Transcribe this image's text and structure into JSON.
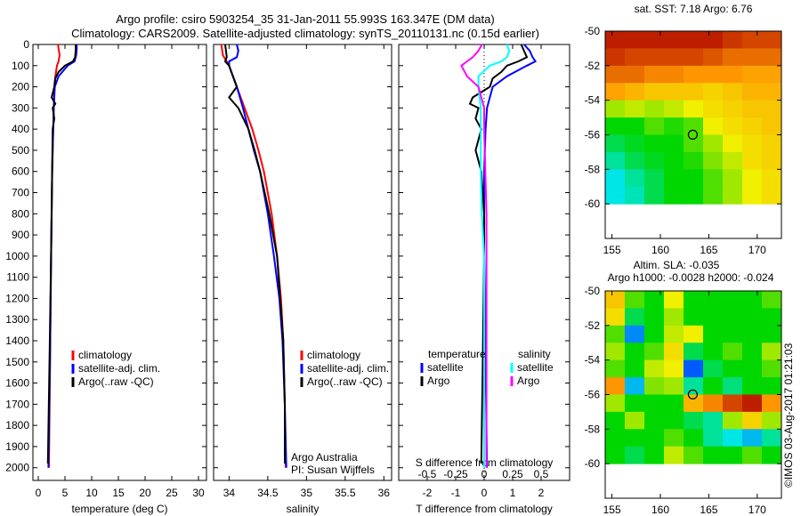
{
  "title": {
    "line1": "Argo profile: csiro 5903254_35 31-Jan-2011 55.993S 163.347E (DM data)",
    "line2": "Climatology: CARS2009. Satellite-adjusted climatology: synTS_20110131.nc (0.15d earlier)"
  },
  "footer": {
    "credit": "Argo Australia",
    "pi": "PI: Susan Wijffels",
    "stamp": "©IMOS 03-Aug-2017 01:21:03"
  },
  "colors": {
    "climatology": "#ff0000",
    "satellite": "#0000ff",
    "argo": "#000000",
    "sal_satellite": "#00ffff",
    "sal_argo": "#ff00ff"
  },
  "chart_data": [
    {
      "type": "line",
      "id": "temperature",
      "xlabel": "temperature (deg C)",
      "ylabel": "",
      "xlim": [
        -1,
        31.5
      ],
      "ylim": [
        2060,
        0
      ],
      "xticks": [
        0,
        5,
        10,
        15,
        20,
        25,
        30
      ],
      "yticks": [
        0,
        100,
        200,
        300,
        400,
        500,
        600,
        700,
        800,
        900,
        1000,
        1100,
        1200,
        1300,
        1400,
        1500,
        1600,
        1700,
        1800,
        1900,
        2000
      ],
      "legend": {
        "placement": "lower-center",
        "entries": [
          "climatology",
          "satellite-adj. clim.",
          "Argo(..raw -QC)"
        ]
      },
      "series": [
        {
          "name": "climatology",
          "color": "#ff0000",
          "depth": [
            0,
            20,
            50,
            80,
            100,
            150,
            200,
            300,
            400,
            600,
            800,
            1000,
            1500,
            2000
          ],
          "values": [
            3.7,
            3.8,
            4.0,
            3.8,
            3.5,
            3.2,
            3.0,
            2.9,
            2.8,
            2.6,
            2.5,
            2.4,
            2.2,
            2.0
          ]
        },
        {
          "name": "satellite-adj. clim.",
          "color": "#0000ff",
          "depth": [
            0,
            20,
            50,
            80,
            100,
            150,
            200,
            300,
            400,
            600,
            800,
            1000,
            1500,
            2000
          ],
          "values": [
            7.2,
            7.2,
            7.1,
            6.8,
            5.5,
            3.8,
            3.1,
            2.9,
            2.8,
            2.6,
            2.5,
            2.4,
            2.2,
            1.9
          ]
        },
        {
          "name": "Argo(..raw -QC)",
          "color": "#000000",
          "depth": [
            0,
            30,
            60,
            80,
            100,
            130,
            160,
            200,
            250,
            280,
            300,
            350,
            400,
            600,
            1000,
            1500,
            1980
          ],
          "values": [
            7.0,
            7.0,
            6.9,
            6.5,
            5.0,
            3.8,
            3.2,
            3.0,
            2.5,
            3.2,
            2.7,
            3.0,
            2.7,
            2.6,
            2.4,
            2.1,
            1.8
          ]
        }
      ]
    },
    {
      "type": "line",
      "id": "salinity",
      "xlabel": "salinity",
      "ylabel": "",
      "xlim": [
        33.8,
        36.1
      ],
      "ylim": [
        2060,
        0
      ],
      "xticks": [
        34,
        34.5,
        35,
        35.5,
        36
      ],
      "legend": {
        "placement": "lower-center",
        "entries": [
          "climatology",
          "satellite-adj. clim.",
          "Argo(..raw -QC)"
        ]
      },
      "series": [
        {
          "name": "climatology",
          "color": "#ff0000",
          "depth": [
            0,
            50,
            100,
            200,
            300,
            400,
            500,
            600,
            800,
            1000,
            1200,
            1400,
            1700,
            2000
          ],
          "values": [
            33.9,
            33.92,
            34.0,
            34.1,
            34.2,
            34.3,
            34.38,
            34.45,
            34.55,
            34.62,
            34.67,
            34.7,
            34.72,
            34.73
          ]
        },
        {
          "name": "satellite-adj. clim.",
          "color": "#0000ff",
          "depth": [
            0,
            30,
            60,
            80,
            100,
            150,
            200,
            300,
            400,
            500,
            600,
            800,
            1000,
            1200,
            1400,
            1700,
            2000
          ],
          "values": [
            34.1,
            34.12,
            34.1,
            34.0,
            34.0,
            34.05,
            34.1,
            34.18,
            34.25,
            34.32,
            34.4,
            34.5,
            34.58,
            34.65,
            34.69,
            34.72,
            34.74
          ]
        },
        {
          "name": "Argo(..raw -QC)",
          "color": "#000000",
          "depth": [
            0,
            30,
            60,
            80,
            100,
            150,
            200,
            250,
            300,
            400,
            500,
            600,
            800,
            1000,
            1200,
            1400,
            1700,
            1980
          ],
          "values": [
            33.95,
            33.96,
            33.97,
            33.95,
            34.0,
            34.05,
            34.1,
            34.0,
            34.12,
            34.25,
            34.33,
            34.4,
            34.52,
            34.62,
            34.66,
            34.7,
            34.72,
            34.72
          ]
        }
      ]
    },
    {
      "type": "line",
      "id": "differences",
      "xlabel": "T difference from climatology",
      "x2label": "S difference from climatology",
      "xlim": [
        -3,
        3
      ],
      "ylim": [
        2060,
        0
      ],
      "xticks": [
        -2,
        -1,
        0,
        1,
        2
      ],
      "x2ticks": [
        -0.5,
        -0.25,
        0,
        0.25,
        0.5
      ],
      "legend": {
        "placement": "lower-center",
        "col1_title": "temperature",
        "col2_title": "salinity",
        "entries": [
          "satellite",
          "Argo",
          "satellite",
          "Argo"
        ]
      },
      "series": [
        {
          "name": "satellite",
          "group": "temperature",
          "color": "#0000ff",
          "depth": [
            0,
            30,
            60,
            80,
            100,
            150,
            200,
            300,
            400,
            600,
            800,
            1000,
            1500,
            2000
          ],
          "values": [
            1.4,
            1.6,
            1.7,
            1.8,
            1.5,
            0.8,
            0.3,
            0.1,
            0.05,
            0,
            0,
            0,
            0.05,
            0.1
          ]
        },
        {
          "name": "Argo",
          "group": "temperature",
          "color": "#000000",
          "depth": [
            0,
            30,
            60,
            80,
            100,
            130,
            160,
            200,
            250,
            280,
            300,
            350,
            400,
            450,
            500,
            600,
            800,
            1000,
            1500,
            1980
          ],
          "values": [
            1.3,
            1.4,
            1.5,
            1.2,
            0.8,
            0.6,
            0.3,
            0.2,
            -0.4,
            -0.5,
            -0.2,
            -0.3,
            -0.1,
            -0.2,
            -0.3,
            -0.1,
            0,
            0,
            -0.05,
            -0.1
          ]
        },
        {
          "name": "satellite",
          "group": "salinity",
          "color": "#00ffff",
          "depth": [
            0,
            30,
            60,
            80,
            100,
            150,
            200,
            300,
            400,
            600,
            800,
            1000,
            1500,
            2000
          ],
          "values": [
            0.2,
            0.22,
            0.2,
            0.15,
            0.05,
            -0.05,
            -0.05,
            -0.03,
            -0.03,
            -0.03,
            -0.02,
            0,
            0,
            0
          ]
        },
        {
          "name": "Argo",
          "group": "salinity",
          "color": "#ff00ff",
          "depth": [
            0,
            30,
            60,
            80,
            100,
            150,
            200,
            300,
            400,
            600,
            800,
            1000,
            1500,
            2000
          ],
          "values": [
            -0.02,
            -0.05,
            -0.1,
            -0.15,
            -0.2,
            -0.15,
            -0.05,
            0,
            0,
            0.01,
            0.02,
            0.02,
            0.02,
            0.02
          ]
        }
      ]
    },
    {
      "type": "heatmap",
      "id": "sst-map",
      "title": "sat. SST: 7.18 Argo: 6.76",
      "xlim": [
        154.3,
        172.5
      ],
      "ylim": [
        -62,
        -50
      ],
      "xticks": [
        155,
        160,
        165,
        170
      ],
      "yticks": [
        -50,
        -52,
        -54,
        -56,
        -58,
        -60
      ],
      "grid_lon_start": 154.3,
      "grid_lon_step": 2.022,
      "grid_lat_start": -50,
      "grid_lat_step": -1,
      "marker": {
        "lon": 163.347,
        "lat": -55.993
      },
      "values": [
        [
          0.95,
          0.95,
          0.95,
          0.95,
          0.95,
          0.95,
          0.92,
          0.9,
          0.9
        ],
        [
          0.92,
          0.9,
          0.9,
          0.9,
          0.9,
          0.88,
          0.85,
          0.85,
          0.85
        ],
        [
          0.85,
          0.85,
          0.82,
          0.82,
          0.8,
          0.8,
          0.8,
          0.78,
          0.78
        ],
        [
          0.78,
          0.75,
          0.72,
          0.72,
          0.72,
          0.7,
          0.72,
          0.75,
          0.75
        ],
        [
          0.6,
          0.62,
          0.6,
          0.62,
          0.65,
          0.68,
          0.7,
          0.72,
          0.72
        ],
        [
          0.5,
          0.5,
          0.55,
          0.52,
          0.55,
          0.65,
          0.68,
          0.7,
          0.72
        ],
        [
          0.45,
          0.48,
          0.5,
          0.5,
          0.55,
          0.6,
          0.65,
          0.68,
          0.7
        ],
        [
          0.4,
          0.45,
          0.48,
          0.5,
          0.52,
          0.58,
          0.62,
          0.68,
          0.7
        ],
        [
          0.35,
          0.4,
          0.45,
          0.5,
          0.5,
          0.55,
          0.6,
          0.65,
          0.68
        ],
        [
          0.35,
          0.38,
          0.45,
          0.5,
          0.5,
          0.55,
          0.6,
          0.65,
          0.68
        ]
      ]
    },
    {
      "type": "heatmap",
      "id": "sla-map",
      "title": "Altim. SLA: -0.035",
      "subtitle": "Argo h1000: -0.0028 h2000: -0.024",
      "xlim": [
        154.3,
        172.5
      ],
      "ylim": [
        -62,
        -50
      ],
      "xticks": [
        155,
        160,
        165,
        170
      ],
      "yticks": [
        -50,
        -52,
        -54,
        -56,
        -58,
        -60
      ],
      "grid_lon_start": 154.3,
      "grid_lon_step": 2.022,
      "grid_lat_start": -50,
      "grid_lat_step": -1,
      "marker": {
        "lon": 163.347,
        "lat": -55.993
      },
      "values": [
        [
          0.72,
          0.55,
          0.5,
          0.65,
          0.5,
          0.5,
          0.5,
          0.5,
          0.55
        ],
        [
          0.68,
          0.45,
          0.5,
          0.6,
          0.5,
          0.5,
          0.5,
          0.5,
          0.5
        ],
        [
          0.55,
          0.25,
          0.5,
          0.62,
          0.65,
          0.5,
          0.5,
          0.5,
          0.5
        ],
        [
          0.6,
          0.5,
          0.55,
          0.68,
          0.45,
          0.5,
          0.55,
          0.5,
          0.6
        ],
        [
          0.55,
          0.5,
          0.62,
          0.65,
          0.2,
          0.45,
          0.5,
          0.5,
          0.55
        ],
        [
          0.8,
          0.3,
          0.58,
          0.6,
          0.4,
          0.5,
          0.42,
          0.5,
          0.5
        ],
        [
          0.6,
          0.5,
          0.5,
          0.5,
          0.75,
          0.82,
          0.9,
          0.95,
          0.8
        ],
        [
          0.5,
          0.6,
          0.5,
          0.5,
          0.45,
          0.4,
          0.6,
          0.7,
          0.6
        ],
        [
          0.5,
          0.5,
          0.5,
          0.55,
          0.5,
          0.4,
          0.35,
          0.3,
          0.4
        ],
        [
          0.5,
          0.45,
          0.5,
          0.62,
          0.55,
          0.5,
          0.5,
          0.55,
          0.5
        ]
      ]
    }
  ]
}
